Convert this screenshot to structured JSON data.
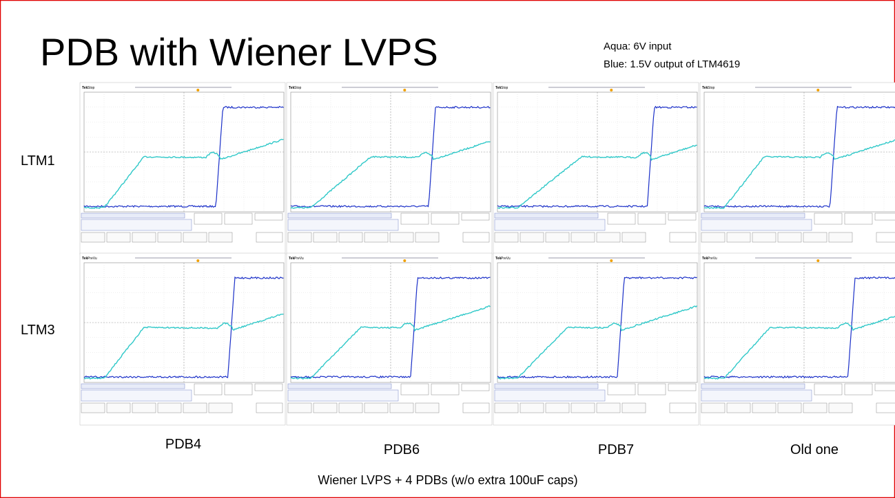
{
  "title": "PDB with Wiener LVPS",
  "notes": [
    "Aqua: 6V input",
    "Blue: 1.5V output of LTM4619"
  ],
  "scope_brand": "Tek",
  "rows": [
    {
      "label": "LTM1",
      "status": "Stop"
    },
    {
      "label": "LTM3",
      "status": "PreVu"
    }
  ],
  "columns": [
    "PDB4",
    "PDB6",
    "PDB7",
    "Old one"
  ],
  "footer": "Wiener LVPS + 4 PDBs (w/o extra 100uF caps)"
}
